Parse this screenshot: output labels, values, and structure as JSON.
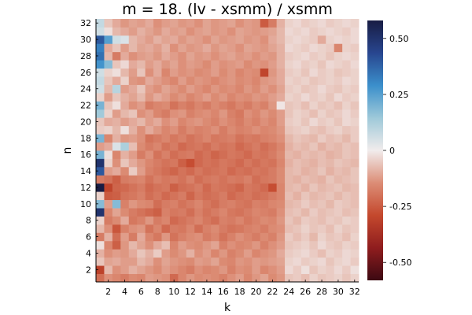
{
  "chart_data": {
    "type": "heatmap",
    "title": "m = 18. (lv - xsmm) / xsmm",
    "xlabel": "k",
    "ylabel": "n",
    "x": [
      1,
      2,
      3,
      4,
      5,
      6,
      7,
      8,
      9,
      10,
      11,
      12,
      13,
      14,
      15,
      16,
      17,
      18,
      19,
      20,
      21,
      22,
      23,
      24,
      25,
      26,
      27,
      28,
      29,
      30,
      31,
      32
    ],
    "y": [
      1,
      2,
      3,
      4,
      5,
      6,
      7,
      8,
      9,
      10,
      11,
      12,
      13,
      14,
      15,
      16,
      17,
      18,
      19,
      20,
      21,
      22,
      23,
      24,
      25,
      26,
      27,
      28,
      29,
      30,
      31,
      32
    ],
    "x_ticks": [
      "2",
      "4",
      "6",
      "8",
      "10",
      "12",
      "14",
      "16",
      "18",
      "20",
      "22",
      "24",
      "26",
      "28",
      "30",
      "32"
    ],
    "y_ticks": [
      "2",
      "4",
      "6",
      "8",
      "10",
      "12",
      "14",
      "16",
      "18",
      "20",
      "22",
      "24",
      "26",
      "28",
      "30",
      "32"
    ],
    "xlim": [
      0.5,
      32.5
    ],
    "ylim": [
      0.5,
      32.5
    ],
    "colorbar": {
      "colormap": "balance",
      "clim": [
        -0.58,
        0.58
      ],
      "ticks": [
        "-0.50",
        "-0.25",
        "0",
        "0.25",
        "0.50"
      ],
      "tick_values": [
        -0.5,
        -0.25,
        0,
        0.25,
        0.5
      ]
    },
    "grid": false,
    "values": [
      [
        -0.21,
        -0.14,
        -0.16,
        -0.18,
        -0.15,
        -0.16,
        -0.12,
        -0.13,
        -0.14,
        -0.22,
        -0.16,
        -0.13,
        -0.15,
        -0.14,
        -0.15,
        -0.17,
        -0.14,
        -0.12,
        -0.16,
        -0.13,
        -0.11,
        -0.15,
        -0.13,
        -0.06,
        -0.05,
        -0.07,
        -0.04,
        -0.06,
        -0.05,
        -0.04,
        -0.06,
        -0.04
      ],
      [
        -0.31,
        -0.08,
        -0.14,
        -0.12,
        -0.09,
        -0.11,
        -0.13,
        -0.15,
        -0.12,
        -0.14,
        -0.16,
        -0.18,
        -0.14,
        -0.16,
        -0.15,
        -0.13,
        -0.17,
        -0.14,
        -0.15,
        -0.12,
        -0.16,
        -0.14,
        -0.12,
        -0.03,
        -0.05,
        -0.02,
        -0.06,
        -0.04,
        -0.05,
        -0.03,
        -0.05,
        -0.02
      ],
      [
        -0.06,
        -0.11,
        -0.1,
        -0.12,
        -0.12,
        -0.08,
        -0.1,
        -0.14,
        -0.11,
        -0.13,
        -0.14,
        -0.15,
        -0.12,
        -0.13,
        -0.11,
        -0.15,
        -0.16,
        -0.13,
        -0.14,
        -0.12,
        -0.13,
        -0.12,
        -0.11,
        -0.04,
        -0.03,
        -0.05,
        -0.04,
        -0.03,
        -0.06,
        -0.04,
        -0.03,
        -0.05
      ],
      [
        -0.09,
        -0.14,
        -0.12,
        -0.13,
        -0.1,
        -0.06,
        -0.09,
        -0.05,
        -0.12,
        -0.15,
        -0.13,
        -0.09,
        -0.14,
        -0.12,
        -0.16,
        -0.13,
        -0.17,
        -0.15,
        -0.12,
        -0.16,
        -0.14,
        -0.13,
        -0.1,
        -0.05,
        -0.04,
        -0.03,
        -0.05,
        -0.07,
        -0.04,
        -0.05,
        -0.03,
        -0.04
      ],
      [
        -0.02,
        -0.16,
        -0.24,
        -0.13,
        -0.08,
        -0.11,
        -0.14,
        -0.1,
        -0.07,
        -0.16,
        -0.12,
        -0.14,
        -0.15,
        -0.13,
        -0.11,
        -0.17,
        -0.14,
        -0.16,
        -0.15,
        -0.13,
        -0.17,
        -0.14,
        -0.12,
        -0.06,
        -0.05,
        -0.04,
        -0.06,
        -0.03,
        -0.05,
        -0.06,
        -0.04,
        -0.05
      ],
      [
        -0.18,
        -0.09,
        -0.21,
        -0.12,
        -0.18,
        -0.1,
        -0.16,
        -0.19,
        -0.13,
        -0.2,
        -0.17,
        -0.15,
        -0.14,
        -0.18,
        -0.16,
        -0.2,
        -0.17,
        -0.14,
        -0.16,
        -0.18,
        -0.15,
        -0.17,
        -0.13,
        -0.05,
        -0.07,
        -0.05,
        -0.08,
        -0.04,
        -0.06,
        -0.05,
        -0.07,
        -0.04
      ],
      [
        -0.08,
        -0.14,
        -0.26,
        -0.17,
        -0.14,
        -0.13,
        -0.2,
        -0.16,
        -0.22,
        -0.18,
        -0.19,
        -0.16,
        -0.21,
        -0.17,
        -0.15,
        -0.18,
        -0.2,
        -0.19,
        -0.17,
        -0.16,
        -0.18,
        -0.15,
        -0.14,
        -0.07,
        -0.06,
        -0.04,
        -0.06,
        -0.05,
        -0.07,
        -0.04,
        -0.06,
        -0.05
      ],
      [
        -0.04,
        -0.18,
        -0.15,
        -0.1,
        -0.19,
        -0.17,
        -0.13,
        -0.18,
        -0.16,
        -0.22,
        -0.2,
        -0.18,
        -0.16,
        -0.19,
        -0.21,
        -0.17,
        -0.18,
        -0.16,
        -0.19,
        -0.17,
        -0.15,
        -0.16,
        -0.13,
        -0.06,
        -0.08,
        -0.05,
        -0.06,
        -0.07,
        -0.05,
        -0.06,
        -0.04,
        -0.05
      ],
      [
        0.5,
        -0.16,
        -0.11,
        -0.15,
        -0.18,
        -0.2,
        -0.22,
        -0.24,
        -0.17,
        -0.19,
        -0.18,
        -0.21,
        -0.17,
        -0.2,
        -0.18,
        -0.16,
        -0.19,
        -0.2,
        -0.18,
        -0.16,
        -0.17,
        -0.18,
        -0.14,
        -0.07,
        -0.06,
        -0.08,
        -0.05,
        -0.07,
        -0.06,
        -0.05,
        -0.07,
        -0.06
      ],
      [
        0.18,
        -0.12,
        0.18,
        -0.17,
        -0.13,
        -0.15,
        -0.16,
        -0.21,
        -0.18,
        -0.17,
        -0.2,
        -0.18,
        -0.16,
        -0.19,
        -0.21,
        -0.18,
        -0.17,
        -0.19,
        -0.2,
        -0.17,
        -0.18,
        -0.16,
        -0.15,
        -0.08,
        -0.07,
        -0.05,
        -0.07,
        -0.06,
        -0.08,
        -0.05,
        -0.06,
        -0.07
      ],
      [
        -0.04,
        -0.25,
        -0.24,
        -0.2,
        -0.19,
        -0.17,
        -0.21,
        -0.19,
        -0.22,
        -0.2,
        -0.18,
        -0.23,
        -0.19,
        -0.21,
        -0.2,
        -0.18,
        -0.22,
        -0.2,
        -0.19,
        -0.21,
        -0.2,
        -0.18,
        -0.16,
        -0.07,
        -0.09,
        -0.06,
        -0.08,
        -0.07,
        -0.06,
        -0.08,
        -0.06,
        -0.07
      ],
      [
        0.58,
        -0.3,
        -0.23,
        -0.22,
        -0.2,
        -0.18,
        -0.22,
        -0.2,
        -0.19,
        -0.24,
        -0.21,
        -0.2,
        -0.18,
        -0.22,
        -0.19,
        -0.2,
        -0.21,
        -0.23,
        -0.19,
        -0.2,
        -0.22,
        -0.28,
        -0.16,
        -0.08,
        -0.07,
        -0.09,
        -0.06,
        -0.08,
        -0.07,
        -0.06,
        -0.08,
        -0.07
      ],
      [
        -0.18,
        -0.2,
        -0.24,
        -0.18,
        -0.17,
        -0.16,
        -0.2,
        -0.17,
        -0.19,
        -0.18,
        -0.2,
        -0.17,
        -0.21,
        -0.19,
        -0.18,
        -0.2,
        -0.18,
        -0.19,
        -0.17,
        -0.21,
        -0.19,
        -0.18,
        -0.15,
        -0.08,
        -0.09,
        -0.07,
        -0.08,
        -0.09,
        -0.06,
        -0.08,
        -0.07,
        -0.06
      ],
      [
        0.4,
        -0.12,
        -0.1,
        -0.15,
        -0.05,
        -0.12,
        -0.17,
        -0.19,
        -0.21,
        -0.23,
        -0.2,
        -0.22,
        -0.19,
        -0.21,
        -0.2,
        -0.19,
        -0.22,
        -0.2,
        -0.21,
        -0.19,
        -0.2,
        -0.18,
        -0.15,
        -0.08,
        -0.07,
        -0.09,
        -0.08,
        -0.06,
        -0.09,
        -0.07,
        -0.08,
        -0.06
      ],
      [
        0.5,
        -0.04,
        -0.14,
        -0.06,
        -0.1,
        -0.13,
        -0.16,
        -0.18,
        -0.2,
        -0.19,
        -0.24,
        -0.28,
        -0.22,
        -0.2,
        -0.21,
        -0.19,
        -0.2,
        -0.22,
        -0.19,
        -0.21,
        -0.19,
        -0.2,
        -0.16,
        -0.09,
        -0.07,
        -0.08,
        -0.09,
        -0.07,
        -0.08,
        -0.06,
        -0.07,
        -0.08
      ],
      [
        0.2,
        -0.02,
        -0.16,
        -0.09,
        -0.12,
        -0.18,
        -0.14,
        -0.2,
        -0.17,
        -0.21,
        -0.19,
        -0.18,
        -0.22,
        -0.2,
        -0.23,
        -0.21,
        -0.19,
        -0.2,
        -0.22,
        -0.19,
        -0.2,
        -0.18,
        -0.15,
        -0.08,
        -0.09,
        -0.07,
        -0.08,
        -0.07,
        -0.09,
        -0.08,
        -0.06,
        -0.07
      ],
      [
        -0.12,
        -0.1,
        0.04,
        0.12,
        -0.07,
        -0.15,
        -0.18,
        -0.16,
        -0.2,
        -0.18,
        -0.22,
        -0.2,
        -0.19,
        -0.21,
        -0.18,
        -0.2,
        -0.19,
        -0.22,
        -0.2,
        -0.18,
        -0.21,
        -0.19,
        -0.16,
        -0.09,
        -0.07,
        -0.08,
        -0.06,
        -0.09,
        -0.07,
        -0.08,
        -0.06,
        -0.07
      ],
      [
        0.2,
        -0.16,
        -0.09,
        -0.13,
        -0.12,
        -0.14,
        -0.2,
        -0.18,
        -0.16,
        -0.19,
        -0.17,
        -0.2,
        -0.18,
        -0.16,
        -0.19,
        -0.18,
        -0.17,
        -0.2,
        -0.18,
        -0.19,
        -0.17,
        -0.16,
        -0.14,
        -0.08,
        -0.06,
        -0.07,
        -0.08,
        -0.05,
        -0.07,
        -0.06,
        -0.08,
        -0.05
      ],
      [
        -0.05,
        -0.04,
        -0.08,
        -0.02,
        -0.09,
        -0.14,
        -0.1,
        -0.13,
        -0.16,
        -0.14,
        -0.18,
        -0.15,
        -0.17,
        -0.16,
        -0.14,
        -0.18,
        -0.15,
        -0.17,
        -0.16,
        -0.14,
        -0.16,
        -0.15,
        -0.13,
        -0.06,
        -0.05,
        -0.04,
        -0.06,
        -0.07,
        -0.05,
        -0.04,
        -0.06,
        -0.05
      ],
      [
        -0.06,
        -0.1,
        -0.09,
        -0.12,
        -0.1,
        -0.08,
        -0.12,
        -0.1,
        -0.14,
        -0.12,
        -0.16,
        -0.14,
        -0.13,
        -0.15,
        -0.17,
        -0.14,
        -0.16,
        -0.18,
        -0.15,
        -0.17,
        -0.14,
        -0.16,
        -0.12,
        -0.05,
        -0.04,
        -0.06,
        -0.03,
        -0.05,
        -0.04,
        -0.06,
        -0.03,
        -0.04
      ],
      [
        0.14,
        -0.04,
        -0.12,
        -0.08,
        -0.06,
        -0.14,
        -0.12,
        -0.16,
        -0.18,
        -0.14,
        -0.13,
        -0.17,
        -0.15,
        -0.14,
        -0.16,
        -0.13,
        -0.17,
        -0.19,
        -0.14,
        -0.16,
        -0.13,
        -0.15,
        -0.12,
        -0.06,
        -0.04,
        -0.05,
        -0.07,
        -0.04,
        -0.06,
        -0.05,
        -0.03,
        -0.05
      ],
      [
        0.2,
        -0.06,
        -0.02,
        -0.1,
        -0.14,
        -0.12,
        -0.18,
        -0.16,
        -0.15,
        -0.2,
        -0.17,
        -0.19,
        -0.16,
        -0.18,
        -0.15,
        -0.17,
        -0.19,
        -0.16,
        -0.18,
        -0.15,
        -0.17,
        -0.13,
        -0.01,
        -0.06,
        -0.05,
        -0.07,
        -0.04,
        -0.06,
        -0.05,
        -0.07,
        -0.04,
        -0.06
      ],
      [
        -0.04,
        -0.12,
        -0.06,
        -0.09,
        -0.11,
        -0.08,
        -0.13,
        -0.1,
        -0.12,
        -0.15,
        -0.13,
        -0.16,
        -0.14,
        -0.12,
        -0.15,
        -0.13,
        -0.16,
        -0.14,
        -0.15,
        -0.13,
        -0.14,
        -0.12,
        -0.1,
        -0.04,
        -0.05,
        -0.03,
        -0.05,
        -0.04,
        -0.06,
        -0.03,
        -0.05,
        -0.04
      ],
      [
        0.06,
        -0.08,
        0.1,
        -0.12,
        -0.1,
        -0.06,
        -0.12,
        -0.14,
        -0.11,
        -0.13,
        -0.15,
        -0.12,
        -0.14,
        -0.16,
        -0.13,
        -0.15,
        -0.14,
        -0.16,
        -0.13,
        -0.15,
        -0.12,
        -0.14,
        -0.11,
        -0.05,
        -0.04,
        -0.06,
        -0.05,
        -0.03,
        -0.05,
        -0.06,
        -0.04,
        -0.05
      ],
      [
        0.08,
        -0.06,
        -0.1,
        -0.04,
        -0.13,
        -0.14,
        -0.1,
        -0.12,
        -0.14,
        -0.16,
        -0.12,
        -0.15,
        -0.13,
        -0.14,
        -0.16,
        -0.14,
        -0.13,
        -0.15,
        -0.14,
        -0.16,
        -0.13,
        -0.12,
        -0.1,
        -0.04,
        -0.05,
        -0.04,
        -0.06,
        -0.05,
        -0.04,
        -0.05,
        -0.03,
        -0.04
      ],
      [
        0.06,
        -0.04,
        -0.02,
        -0.08,
        -0.12,
        -0.06,
        -0.14,
        -0.1,
        -0.16,
        -0.12,
        -0.14,
        -0.13,
        -0.15,
        -0.14,
        -0.12,
        -0.15,
        -0.13,
        -0.16,
        -0.14,
        -0.15,
        -0.3,
        -0.13,
        -0.1,
        -0.05,
        -0.04,
        -0.06,
        -0.03,
        -0.05,
        -0.04,
        -0.06,
        -0.05,
        -0.04
      ],
      [
        0.28,
        0.18,
        -0.06,
        -0.03,
        -0.1,
        -0.08,
        -0.12,
        -0.1,
        -0.13,
        -0.11,
        -0.14,
        -0.12,
        -0.13,
        -0.15,
        -0.12,
        -0.14,
        -0.13,
        -0.12,
        -0.15,
        -0.13,
        -0.14,
        -0.12,
        -0.09,
        -0.04,
        -0.03,
        -0.05,
        -0.04,
        -0.06,
        -0.03,
        -0.04,
        -0.05,
        -0.03
      ],
      [
        0.35,
        -0.08,
        -0.18,
        -0.1,
        -0.14,
        -0.12,
        -0.11,
        -0.13,
        -0.1,
        -0.12,
        -0.14,
        -0.11,
        -0.13,
        -0.12,
        -0.14,
        -0.12,
        -0.11,
        -0.13,
        -0.12,
        -0.14,
        -0.12,
        -0.13,
        -0.09,
        -0.05,
        -0.04,
        -0.03,
        -0.05,
        -0.04,
        -0.06,
        -0.04,
        -0.03,
        -0.04
      ],
      [
        0.32,
        -0.1,
        -0.06,
        -0.12,
        -0.08,
        -0.11,
        -0.1,
        -0.12,
        -0.09,
        -0.14,
        -0.11,
        -0.13,
        -0.12,
        -0.1,
        -0.13,
        -0.11,
        -0.12,
        -0.14,
        -0.11,
        -0.12,
        -0.13,
        -0.11,
        -0.09,
        -0.03,
        -0.04,
        -0.05,
        -0.03,
        -0.04,
        -0.05,
        -0.16,
        -0.04,
        -0.05
      ],
      [
        0.4,
        0.25,
        0.06,
        0.04,
        -0.08,
        -0.1,
        -0.12,
        -0.09,
        -0.11,
        -0.1,
        -0.13,
        -0.11,
        -0.12,
        -0.14,
        -0.11,
        -0.13,
        -0.12,
        -0.11,
        -0.13,
        -0.12,
        -0.14,
        -0.1,
        -0.08,
        -0.04,
        -0.03,
        -0.04,
        -0.05,
        -0.1,
        -0.04,
        -0.03,
        -0.04,
        -0.03
      ],
      [
        0.06,
        -0.02,
        -0.08,
        -0.1,
        -0.12,
        -0.09,
        -0.11,
        -0.13,
        -0.1,
        -0.12,
        -0.11,
        -0.14,
        -0.12,
        -0.11,
        -0.13,
        -0.12,
        -0.14,
        -0.11,
        -0.12,
        -0.13,
        -0.12,
        -0.11,
        -0.08,
        -0.03,
        -0.04,
        -0.03,
        -0.05,
        -0.04,
        -0.03,
        -0.04,
        -0.05,
        -0.03
      ],
      [
        0.08,
        -0.06,
        -0.1,
        -0.13,
        -0.11,
        -0.12,
        -0.1,
        -0.14,
        -0.12,
        -0.11,
        -0.13,
        -0.12,
        -0.14,
        -0.11,
        -0.13,
        -0.12,
        -0.11,
        -0.14,
        -0.12,
        -0.13,
        -0.25,
        -0.18,
        -0.09,
        -0.04,
        -0.03,
        -0.05,
        -0.04,
        -0.03,
        -0.05,
        -0.04,
        -0.03,
        -0.04
      ]
    ]
  }
}
